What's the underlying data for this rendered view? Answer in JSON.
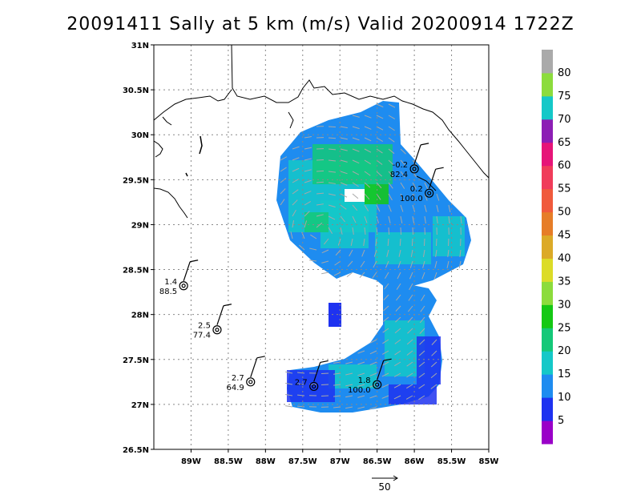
{
  "title": "20091411 Sally at 5 km (m/s) Valid 20200914 1722Z",
  "chart_data": {
    "type": "heatmap",
    "title": "20091411 Sally at 5 km (m/s) Valid 20200914 1722Z",
    "xlabel": "",
    "ylabel": "",
    "x_ticks": [
      "89W",
      "88.5W",
      "88W",
      "87.5W",
      "87W",
      "86.5W",
      "86W",
      "85.5W",
      "85W"
    ],
    "y_ticks": [
      "31N",
      "30.5N",
      "30N",
      "29.5N",
      "29N",
      "28.5N",
      "28N",
      "27.5N",
      "27N",
      "26.5N"
    ],
    "xlim": [
      -89.5,
      -85.0
    ],
    "ylim": [
      26.5,
      31.0
    ],
    "grid": true,
    "colorbar": {
      "labels": [
        "5",
        "10",
        "15",
        "20",
        "25",
        "30",
        "35",
        "40",
        "45",
        "50",
        "55",
        "60",
        "65",
        "70",
        "75",
        "80"
      ],
      "colors": [
        "#9a00c8",
        "#1e32f0",
        "#1e8cf0",
        "#14c8c8",
        "#14c878",
        "#14c814",
        "#8cdc3c",
        "#dcdc28",
        "#dcaa28",
        "#e67d28",
        "#f05a3c",
        "#f03c5a",
        "#e61478",
        "#8c1eb4",
        "#14c8c8",
        "#8cdc3c",
        "#aaaaaa"
      ]
    },
    "vector_reference": {
      "label": "50"
    },
    "stations": [
      {
        "lon": -86.0,
        "lat": 29.62,
        "top": "-0.2",
        "bottom": "82.4"
      },
      {
        "lon": -85.8,
        "lat": 29.35,
        "top": "0.2",
        "bottom": "100.0"
      },
      {
        "lon": -89.1,
        "lat": 28.32,
        "top": "1.4",
        "bottom": "88.5"
      },
      {
        "lon": -88.65,
        "lat": 27.83,
        "top": "2.5",
        "bottom": "77.4"
      },
      {
        "lon": -88.2,
        "lat": 27.25,
        "top": "2.7",
        "bottom": "64.9"
      },
      {
        "lon": -87.35,
        "lat": 27.2,
        "top": "2.7",
        "bottom": ""
      },
      {
        "lon": -86.5,
        "lat": 27.22,
        "top": "1.8",
        "bottom": "100.0"
      }
    ]
  }
}
